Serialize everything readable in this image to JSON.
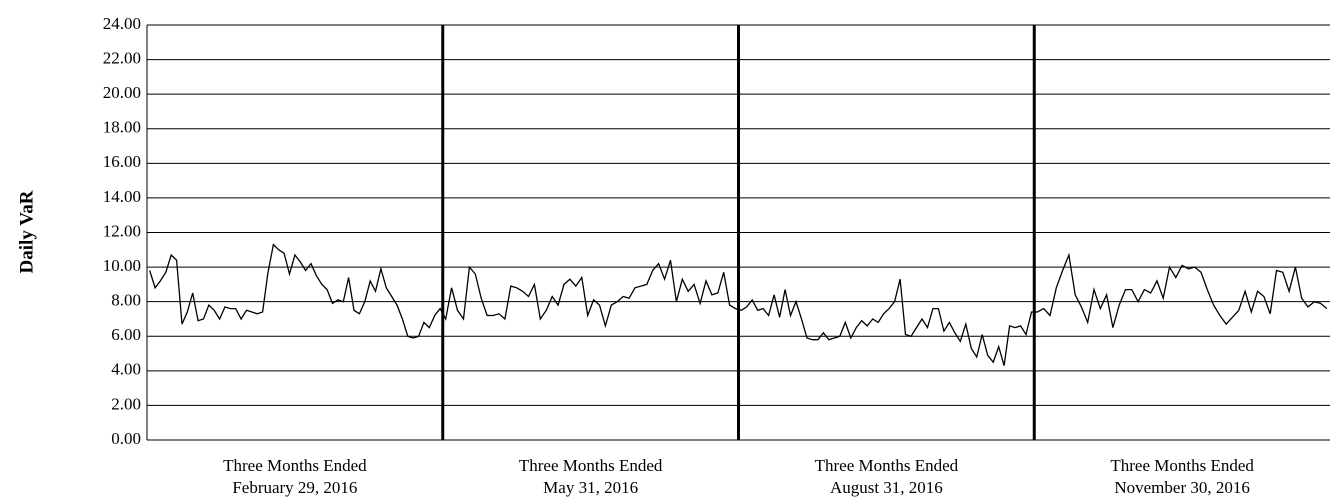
{
  "chart_data": {
    "type": "line",
    "ylabel": "Daily VaR",
    "ylim": [
      0,
      24
    ],
    "yticks": [
      {
        "value": 0,
        "label": "0.00"
      },
      {
        "value": 2,
        "label": "2.00"
      },
      {
        "value": 4,
        "label": "4.00"
      },
      {
        "value": 6,
        "label": "6.00"
      },
      {
        "value": 8,
        "label": "8.00"
      },
      {
        "value": 10,
        "label": "10.00"
      },
      {
        "value": 12,
        "label": "12.00"
      },
      {
        "value": 14,
        "label": "14.00"
      },
      {
        "value": 16,
        "label": "16.00"
      },
      {
        "value": 18,
        "label": "18.00"
      },
      {
        "value": 20,
        "label": "20.00"
      },
      {
        "value": 22,
        "label": "22.00"
      },
      {
        "value": 24,
        "label": "24.00"
      }
    ],
    "grid": true,
    "color": "#000000",
    "periods": [
      {
        "label": [
          "Three Months Ended",
          "February 29, 2016"
        ],
        "values": [
          9.8,
          8.8,
          9.2,
          9.7,
          10.7,
          10.4,
          6.7,
          7.4,
          8.5,
          6.9,
          7.0,
          7.8,
          7.5,
          7.0,
          7.7,
          7.6,
          7.6,
          7.0,
          7.5,
          7.4,
          7.3,
          7.4,
          9.7,
          11.3,
          11.0,
          10.8,
          9.6,
          10.7,
          10.3,
          9.8,
          10.2,
          9.5,
          9.0,
          8.7,
          7.9,
          8.1,
          8.0,
          9.4,
          7.5,
          7.3,
          8.0,
          9.2,
          8.6,
          9.9,
          8.8,
          8.3,
          7.8,
          7.0,
          6.0,
          5.9,
          6.0,
          6.8,
          6.5,
          7.2,
          7.6
        ]
      },
      {
        "label": [
          "Three Months Ended",
          "May 31, 2016"
        ],
        "values": [
          7.0,
          8.8,
          7.5,
          7.0,
          10.0,
          9.6,
          8.2,
          7.2,
          7.2,
          7.3,
          7.0,
          8.9,
          8.8,
          8.6,
          8.3,
          9.0,
          7.0,
          7.5,
          8.3,
          7.8,
          9.0,
          9.3,
          8.9,
          9.4,
          7.2,
          8.1,
          7.8,
          6.6,
          7.8,
          8.0,
          8.3,
          8.2,
          8.8,
          8.9,
          9.0,
          9.8,
          10.2,
          9.3,
          10.4,
          8.0,
          9.3,
          8.6,
          9.0,
          7.9,
          9.2,
          8.4,
          8.5,
          9.7,
          7.8,
          7.6
        ]
      },
      {
        "label": [
          "Three Months Ended",
          "August 31, 2016"
        ],
        "values": [
          7.5,
          7.7,
          8.1,
          7.5,
          7.6,
          7.2,
          8.4,
          7.1,
          8.7,
          7.2,
          8.0,
          7.0,
          5.9,
          5.8,
          5.8,
          6.2,
          5.8,
          5.9,
          6.0,
          6.8,
          5.9,
          6.5,
          6.9,
          6.6,
          7.0,
          6.8,
          7.3,
          7.6,
          8.0,
          9.3,
          6.1,
          6.0,
          6.5,
          7.0,
          6.5,
          7.6,
          7.6,
          6.3,
          6.8,
          6.2,
          5.7,
          6.7,
          5.3,
          4.8,
          6.1,
          4.9,
          4.5,
          5.4,
          4.3,
          6.6,
          6.5,
          6.6,
          6.1,
          7.4
        ]
      },
      {
        "label": [
          "Three Months Ended",
          "November 30, 2016"
        ],
        "values": [
          7.4,
          7.6,
          7.2,
          8.8,
          9.8,
          10.7,
          8.4,
          7.7,
          6.8,
          8.7,
          7.6,
          8.4,
          6.5,
          7.8,
          8.7,
          8.7,
          8.0,
          8.7,
          8.5,
          9.2,
          8.2,
          10.0,
          9.4,
          10.1,
          9.9,
          10.0,
          9.7,
          8.7,
          7.8,
          7.2,
          6.7,
          7.1,
          7.5,
          8.6,
          7.4,
          8.6,
          8.3,
          7.3,
          9.8,
          9.7,
          8.6,
          10.0,
          8.2,
          7.7,
          8.0,
          7.9,
          7.6
        ]
      }
    ]
  }
}
